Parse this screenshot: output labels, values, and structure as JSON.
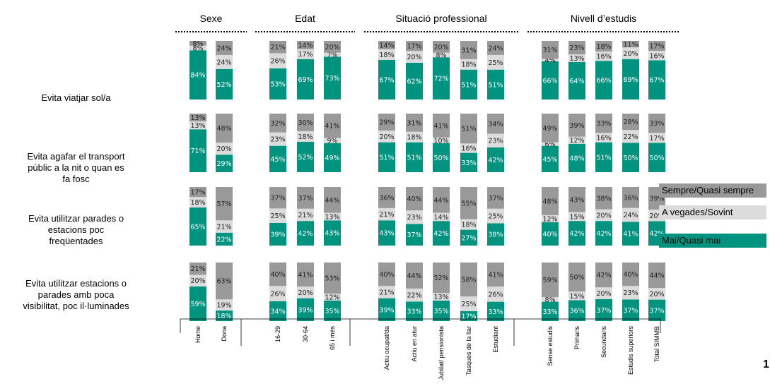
{
  "page_number": "1",
  "legend": {
    "always": "Sempre/Quasi sempre",
    "sometimes": "A vegades/Sovint",
    "never": "Mai/Quasi mai"
  },
  "colors": {
    "never": "#00937F",
    "sometimes": "#DCDCDC",
    "always": "#999999"
  },
  "groups": [
    {
      "title": "Sexe",
      "categories": [
        "Home",
        "Dona"
      ]
    },
    {
      "title": "Edat",
      "categories": [
        "16-29",
        "30-64",
        "65 i més"
      ]
    },
    {
      "title": "Situació professional",
      "categories": [
        "Actiu ocupat/da",
        "Actiu en atur",
        "Jubilat/ pensionista",
        "Tasques de la llar",
        "Estudiant"
      ]
    },
    {
      "title": "Nivell d’estudis",
      "categories": [
        "Sense estudis",
        "Primaris",
        "Secundaris",
        "Estudis superiors",
        "Total SIMMB"
      ]
    }
  ],
  "chart_data": {
    "type": "bar",
    "stacked": "percent",
    "categories": [
      "Home",
      "Dona",
      "16-29",
      "30-64",
      "65 i més",
      "Actiu ocupat/da",
      "Actiu en atur",
      "Jubilat/ pensionista",
      "Tasques de la llar",
      "Estudiant",
      "Sense estudis",
      "Primaris",
      "Secundaris",
      "Estudis superiors",
      "Total SIMMB"
    ],
    "panels": [
      {
        "title": "Evita viatjar sol/a",
        "series": [
          {
            "name": "Mai/Quasi mai",
            "values": [
              84,
              52,
              53,
              69,
              73,
              67,
              62,
              72,
              51,
              51,
              66,
              64,
              66,
              69,
              67
            ]
          },
          {
            "name": "A vegades/Sovint",
            "values": [
              8,
              24,
              26,
              17,
              7,
              18,
              20,
              8,
              18,
              25,
              4,
              13,
              16,
              20,
              16
            ]
          },
          {
            "name": "Sempre/Quasi sempre",
            "values": [
              8,
              24,
              21,
              14,
              20,
              14,
              17,
              20,
              31,
              24,
              31,
              23,
              18,
              11,
              17
            ]
          }
        ]
      },
      {
        "title": "Evita agafar el transport\npúblic a la nit o quan es\nfa fosc",
        "series": [
          {
            "name": "Mai/Quasi mai",
            "values": [
              71,
              29,
              45,
              52,
              49,
              51,
              51,
              50,
              33,
              42,
              45,
              48,
              51,
              50,
              50
            ]
          },
          {
            "name": "A vegades/Sovint",
            "values": [
              13,
              20,
              23,
              18,
              9,
              20,
              18,
              10,
              16,
              23,
              6,
              12,
              16,
              22,
              17
            ]
          },
          {
            "name": "Sempre/Quasi sempre",
            "values": [
              13,
              48,
              32,
              30,
              41,
              29,
              31,
              41,
              51,
              34,
              49,
              39,
              33,
              28,
              33
            ]
          }
        ]
      },
      {
        "title": "Evita utilitzar parades o\nestacions poc\nfreqüentades",
        "series": [
          {
            "name": "Mai/Quasi mai",
            "values": [
              65,
              22,
              39,
              42,
              43,
              43,
              37,
              42,
              27,
              38,
              40,
              42,
              42,
              41,
              42
            ]
          },
          {
            "name": "A vegades/Sovint",
            "values": [
              18,
              21,
              25,
              21,
              13,
              21,
              23,
              14,
              18,
              25,
              12,
              15,
              20,
              24,
              20
            ]
          },
          {
            "name": "Sempre/Quasi sempre",
            "values": [
              17,
              57,
              37,
              37,
              44,
              36,
              40,
              44,
              55,
              37,
              48,
              43,
              38,
              36,
              39
            ]
          }
        ]
      },
      {
        "title": "Evita utilitzar estacions o\nparades amb poca\nvisibilitat, poc il·luminades",
        "series": [
          {
            "name": "Mai/Quasi mai",
            "values": [
              59,
              18,
              34,
              39,
              35,
              39,
              33,
              35,
              17,
              33,
              33,
              36,
              37,
              37,
              37
            ]
          },
          {
            "name": "A vegades/Sovint",
            "values": [
              20,
              19,
              26,
              20,
              12,
              21,
              22,
              13,
              25,
              26,
              8,
              15,
              20,
              23,
              20
            ]
          },
          {
            "name": "Sempre/Quasi sempre",
            "values": [
              21,
              63,
              40,
              41,
              53,
              40,
              44,
              52,
              58,
              41,
              59,
              50,
              42,
              40,
              44
            ]
          }
        ]
      }
    ],
    "ylim": [
      0,
      100
    ],
    "legend_position": "right",
    "grid": false
  }
}
